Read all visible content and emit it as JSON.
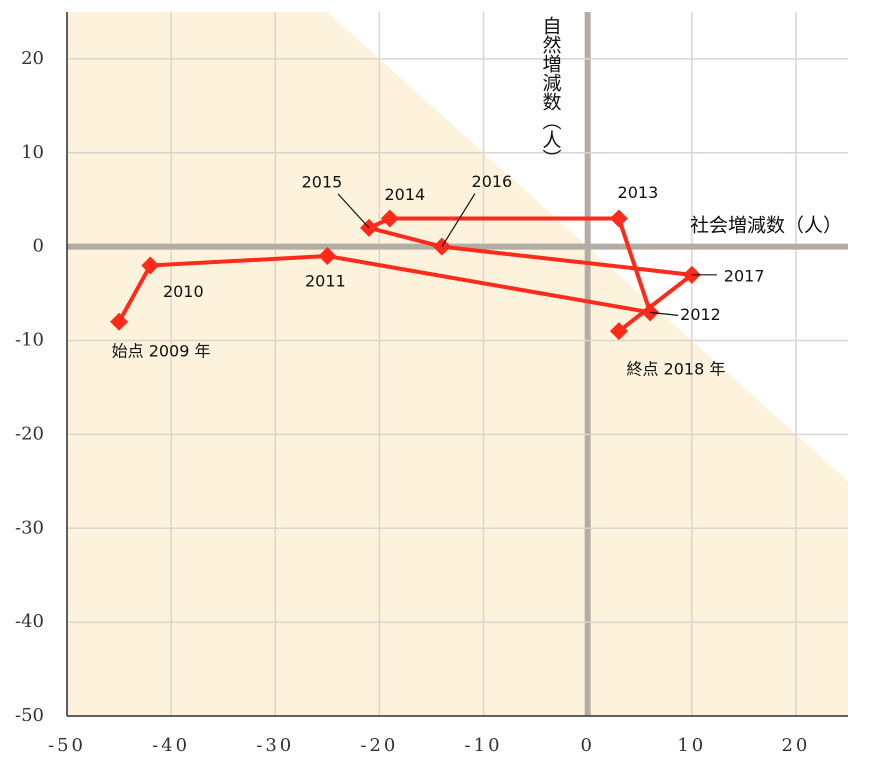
{
  "chart_data": {
    "type": "line",
    "x_label": "社会増減数（人）",
    "y_label": "自然増減数（人）",
    "x": [
      -45,
      -42,
      -25,
      6,
      3,
      -19,
      -21,
      -14,
      10,
      3
    ],
    "series": [
      {
        "color": "#ff2a1a",
        "values": [
          -8,
          -2,
          -1,
          -7,
          3,
          3,
          2,
          0,
          -3,
          -9
        ]
      }
    ],
    "labels": [
      "始点 2009 年",
      "2010",
      "2011",
      "2012",
      "2013",
      "2014",
      "2015",
      "2016",
      "2017",
      "終点 2018 年"
    ],
    "xlim": [
      -50,
      25
    ],
    "ylim": [
      -50,
      25
    ],
    "xticks": [
      -50,
      -40,
      -30,
      -20,
      -10,
      0,
      10,
      20
    ],
    "yticks": [
      -50,
      -40,
      -30,
      -20,
      -10,
      0,
      10,
      20
    ],
    "grid": true
  }
}
